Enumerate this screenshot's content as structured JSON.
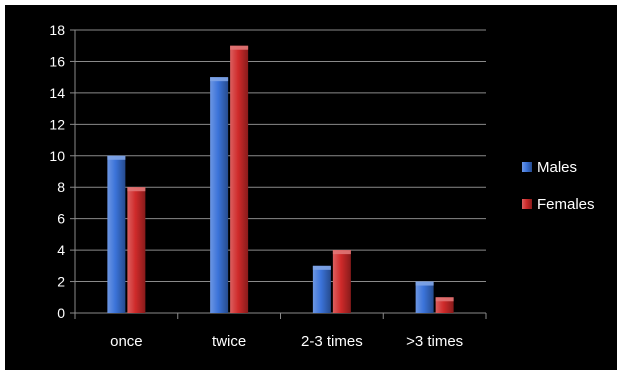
{
  "chart_data": {
    "type": "bar",
    "categories": [
      "once",
      "twice",
      "2-3 times",
      ">3 times"
    ],
    "series": [
      {
        "name": "Males",
        "values": [
          10,
          15,
          3,
          2
        ],
        "color": "#3b73d9"
      },
      {
        "name": "Females",
        "values": [
          8,
          17,
          4,
          1
        ],
        "color": "#cf2a2a"
      }
    ],
    "title": "",
    "xlabel": "",
    "ylabel": "",
    "ylim": [
      0,
      18
    ],
    "yticks": [
      0,
      2,
      4,
      6,
      8,
      10,
      12,
      14,
      16,
      18
    ],
    "grid": true,
    "legend": "right",
    "background": "#000000",
    "grid_color": "#8a8a8a"
  }
}
